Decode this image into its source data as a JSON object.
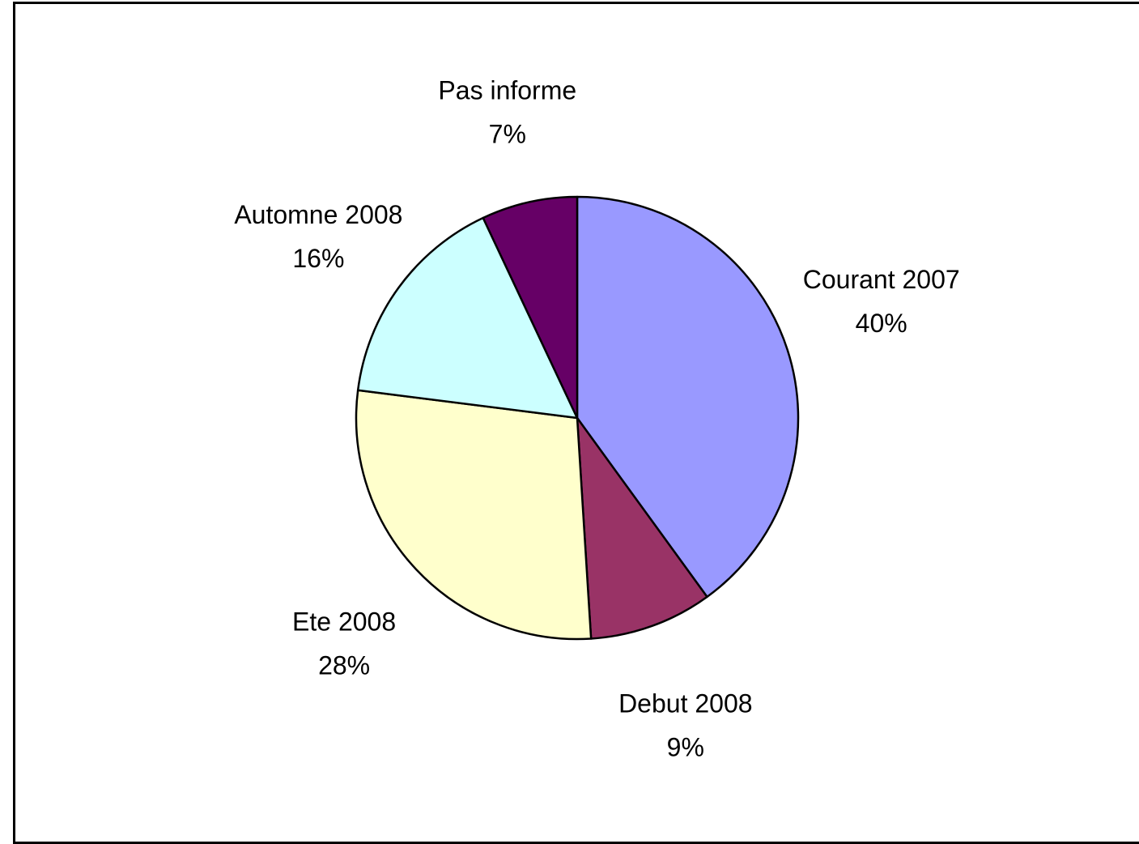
{
  "chart_data": {
    "type": "pie",
    "title": "",
    "slices": [
      {
        "name": "Courant 2007",
        "value": 40,
        "label": "40%",
        "color": "#9999ff"
      },
      {
        "name": "Debut 2008",
        "value": 9,
        "label": "9%",
        "color": "#993366"
      },
      {
        "name": "Ete 2008",
        "value": 28,
        "label": "28%",
        "color": "#ffffcc"
      },
      {
        "name": "Automne 2008",
        "value": 16,
        "label": "16%",
        "color": "#ccffff"
      },
      {
        "name": "Pas informe",
        "value": 7,
        "label": "7%",
        "color": "#660066"
      }
    ],
    "start": "12 o'clock",
    "direction": "clockwise",
    "legend": "none"
  }
}
